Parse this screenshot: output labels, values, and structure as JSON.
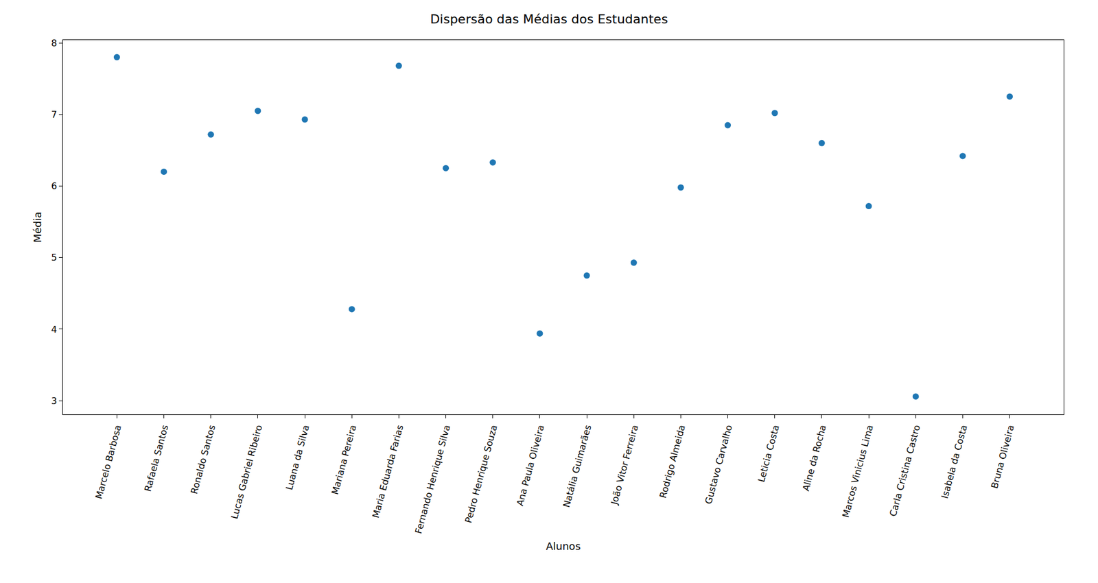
{
  "chart_data": {
    "type": "scatter",
    "title": "Dispersão das Médias dos Estudantes",
    "x_label": "Alunos",
    "y_label": "Média",
    "categories": [
      "Marcelo Barbosa",
      "Rafaela Santos",
      "Ronaldo Santos",
      "Lucas Gabriel Ribeiro",
      "Luana da Silva",
      "Mariana Pereira",
      "Maria Eduarda Farias",
      "Fernando Henrique Silva",
      "Pedro Henrique Souza",
      "Ana Paula Oliveira",
      "Natália Guimarães",
      "João Vitor Ferreira",
      "Rodrigo Almeida",
      "Gustavo Carvalho",
      "Leticia Costa",
      "Aline da Rocha",
      "Marcos Vinicius Lima",
      "Carla Cristina Castro",
      "Isabela da Costa",
      "Bruna Oliveira"
    ],
    "values": [
      7.8,
      6.2,
      6.72,
      7.05,
      6.93,
      4.28,
      7.68,
      6.25,
      6.33,
      3.94,
      4.75,
      4.93,
      5.98,
      6.85,
      7.02,
      6.6,
      5.72,
      3.06,
      6.42,
      7.25
    ],
    "color": "#1f77b4",
    "marker": "circle",
    "ylim": [
      2.81,
      8.04
    ],
    "yticks": [
      3,
      4,
      5,
      6,
      7,
      8
    ],
    "grid": false
  }
}
